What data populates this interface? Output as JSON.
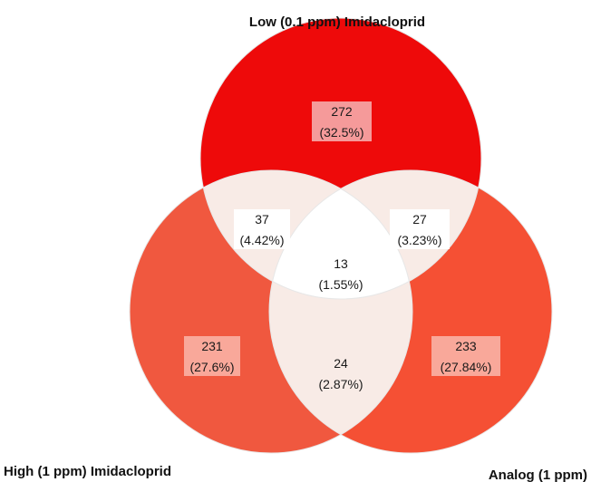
{
  "colors": {
    "low_circle": "#ee0a0a",
    "high_circle": "#f0583f",
    "analog_circle": "#f55034",
    "overlap_pair": "#f8ebe6",
    "overlap_all": "#ffffff",
    "label_box_low": "#f59a9a",
    "label_box_side": "#f9a89a",
    "label_box_overlap": "#ffffff",
    "outline": "#e7e7e7"
  },
  "sets": {
    "low": "Low (0.1 ppm) Imidacloprid",
    "high": "High (1 ppm) Imidacloprid",
    "analog": "Analog (1 ppm)"
  },
  "regions": {
    "low_only": {
      "count": "272",
      "percent": "(32.5%)"
    },
    "high_only": {
      "count": "231",
      "percent": "(27.6%)"
    },
    "analog_only": {
      "count": "233",
      "percent": "(27.84%)"
    },
    "low_high": {
      "count": "37",
      "percent": "(4.42%)"
    },
    "low_analog": {
      "count": "27",
      "percent": "(3.23%)"
    },
    "high_analog": {
      "count": "24",
      "percent": "(2.87%)"
    },
    "all_three": {
      "count": "13",
      "percent": "(1.55%)"
    }
  }
}
